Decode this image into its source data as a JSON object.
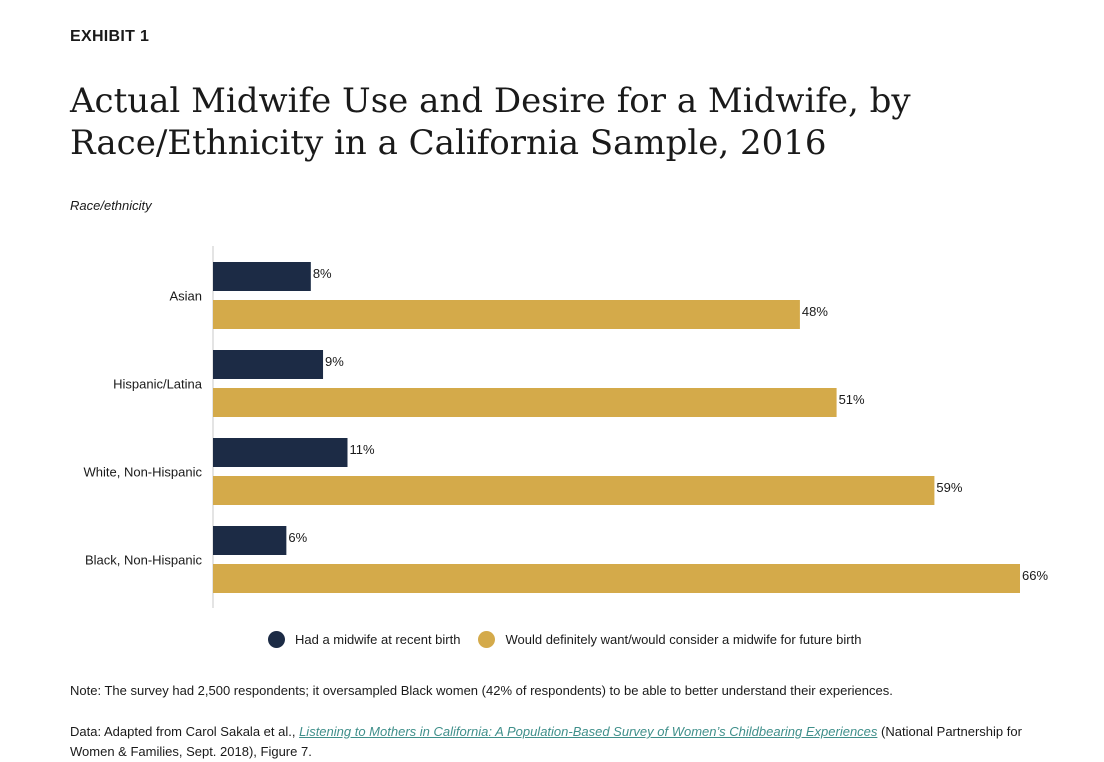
{
  "exhibit_label": "EXHIBIT 1",
  "title": "Actual Midwife Use and Desire for a Midwife, by Race/Ethnicity in a California Sample, 2016",
  "axis_caption": "Race/ethnicity",
  "colors": {
    "navy": "#1c2b45",
    "gold": "#d4aa4a",
    "link": "#3f8f8a"
  },
  "legend": {
    "series1": "Had a midwife at recent birth",
    "series2": "Would definitely want/would consider a midwife for future birth"
  },
  "note": "Note: The survey had 2,500 respondents; it oversampled Black women (42% of respondents) to be able to better understand their experiences.",
  "source": {
    "prefix": "Data: Adapted from Carol Sakala et al., ",
    "link_text": "Listening to Mothers in California: A Population-Based Survey of Women’s Childbearing Experiences",
    "suffix": " (National Partnership for Women & Families, Sept. 2018), Figure 7."
  },
  "chart_data": {
    "type": "bar",
    "orientation": "horizontal",
    "categories": [
      "Asian",
      "Hispanic/Latina",
      "White, Non-Hispanic",
      "Black, Non-Hispanic"
    ],
    "series": [
      {
        "name": "Had a midwife at recent birth",
        "values": [
          8,
          9,
          11,
          6
        ],
        "color": "#1c2b45"
      },
      {
        "name": "Would definitely want/would consider a midwife for future birth",
        "values": [
          48,
          51,
          59,
          66
        ],
        "color": "#d4aa4a"
      }
    ],
    "value_labels": [
      [
        "8%",
        "9%",
        "11%",
        "6%"
      ],
      [
        "48%",
        "51%",
        "59%",
        "66%"
      ]
    ],
    "ylabel": "Race/ethnicity",
    "xlim": [
      0,
      70
    ],
    "grid": false,
    "legend_position": "bottom"
  }
}
